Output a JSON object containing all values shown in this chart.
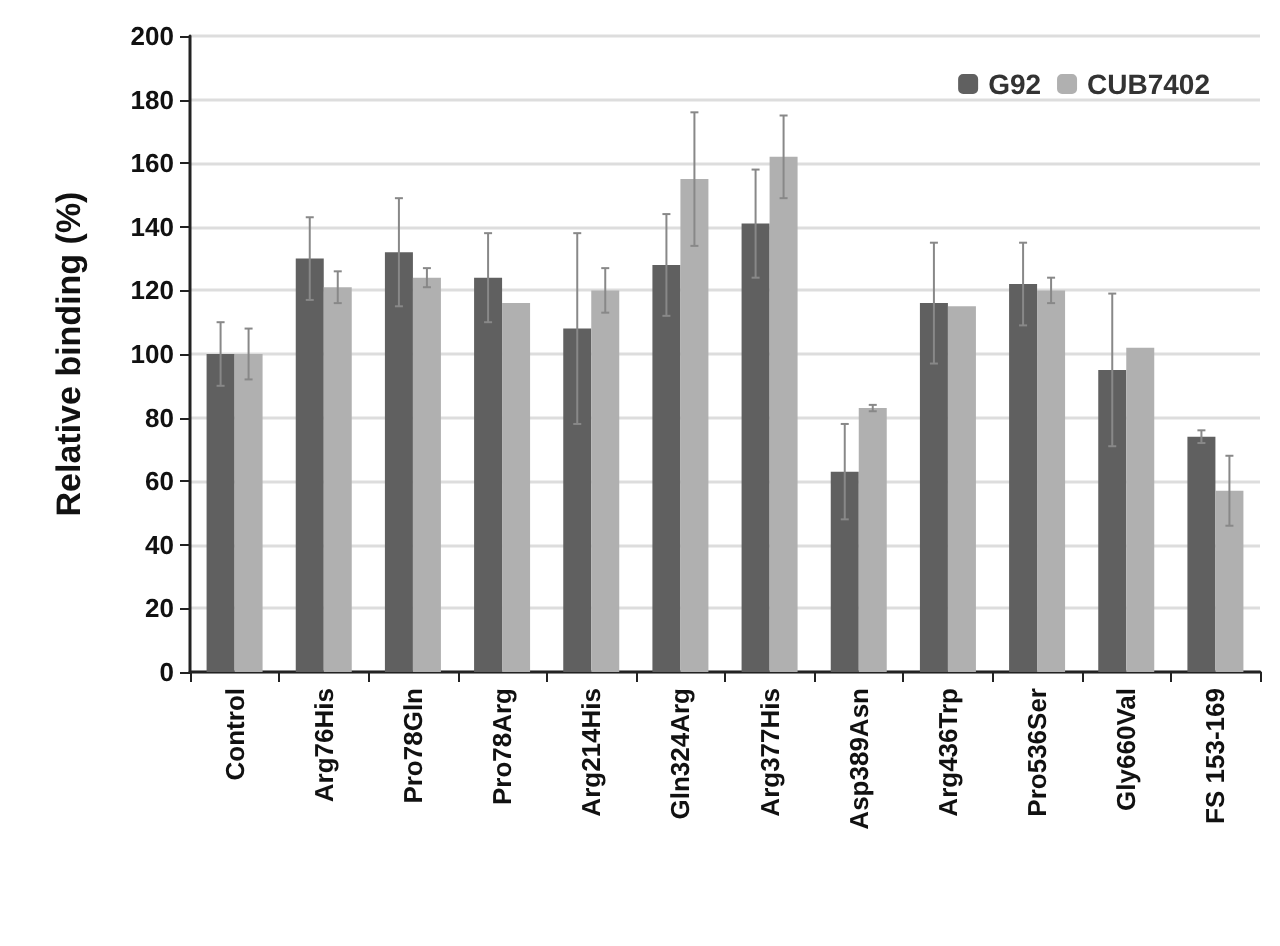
{
  "chart_data": {
    "type": "bar",
    "ylabel": "Relative binding (%)",
    "categories": [
      "Control",
      "Arg76His",
      "Pro78Gln",
      "Pro78Arg",
      "Arg214His",
      "Gln324Arg",
      "Arg377His",
      "Asp389Asn",
      "Arg436Trp",
      "Pro536Ser",
      "Gly660Val",
      "FS 153-169"
    ],
    "series": [
      {
        "name": "G92",
        "color": "#606060",
        "values": [
          100,
          130,
          132,
          124,
          108,
          128,
          141,
          63,
          116,
          122,
          95,
          74
        ],
        "errors": [
          10,
          13,
          17,
          14,
          30,
          16,
          17,
          15,
          19,
          13,
          24,
          2
        ]
      },
      {
        "name": "CUB7402",
        "color": "#b0b0b0",
        "values": [
          100,
          121,
          124,
          116,
          120,
          155,
          162,
          83,
          115,
          120,
          102,
          57
        ],
        "errors": [
          8,
          5,
          3,
          null,
          7,
          21,
          13,
          1,
          null,
          4,
          null,
          11
        ]
      }
    ],
    "ylim": [
      0,
      200
    ],
    "yticks": [
      0,
      20,
      40,
      60,
      80,
      100,
      120,
      140,
      160,
      180,
      200
    ],
    "grid": "y",
    "legend": "top right"
  }
}
